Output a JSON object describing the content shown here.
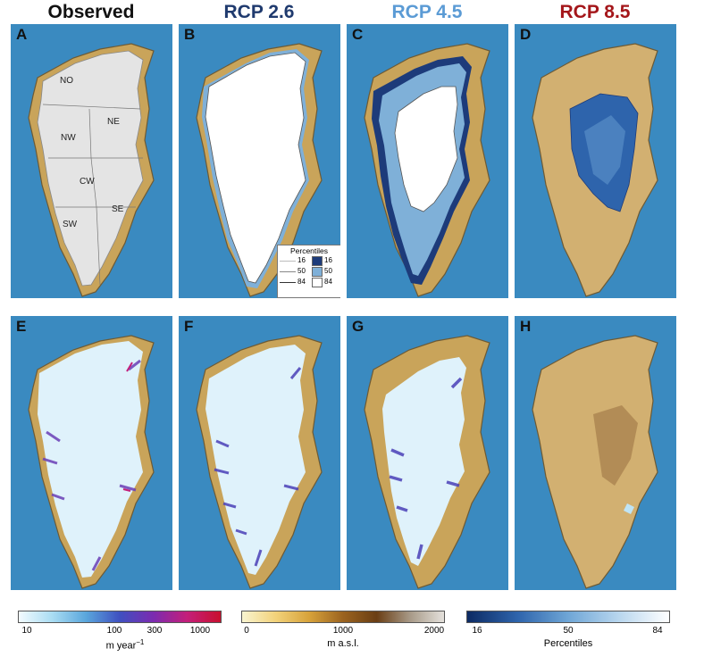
{
  "column_titles": [
    {
      "text": "Observed",
      "color": "#111111"
    },
    {
      "text": "RCP 2.6",
      "color": "#1f3a6e"
    },
    {
      "text": "RCP 4.5",
      "color": "#5b9bd5"
    },
    {
      "text": "RCP 8.5",
      "color": "#a4161a"
    }
  ],
  "panel_letters": [
    "A",
    "B",
    "C",
    "D",
    "E",
    "F",
    "G",
    "H"
  ],
  "regions": [
    "NO",
    "NE",
    "NW",
    "CW",
    "SW",
    "SE"
  ],
  "legend": {
    "title": "Percentiles",
    "rows": [
      {
        "left": "16",
        "right": "16",
        "swatch": "#1d3b7a"
      },
      {
        "left": "50",
        "right": "50",
        "swatch": "#7fb0d8"
      },
      {
        "left": "84",
        "right": "84",
        "swatch": "#ffffff"
      }
    ]
  },
  "colorbars": [
    {
      "ticks": [
        "10",
        "100",
        "300",
        "1000"
      ],
      "unit": "m year",
      "unit_exp": "−1",
      "colors": [
        "#f3fbff",
        "#a9dcf2",
        "#5aa6dc",
        "#3f50c0",
        "#7b2bb0",
        "#c41f7a",
        "#c8102e"
      ]
    },
    {
      "ticks": [
        "0",
        "1000",
        "2000"
      ],
      "unit": "m a.s.l.",
      "colors": [
        "#f9f4d0",
        "#f2d27a",
        "#d7a23a",
        "#9b6320",
        "#6a3e14",
        "#a89a88",
        "#e4e1dc"
      ]
    },
    {
      "ticks": [
        "16",
        "50",
        "84"
      ],
      "unit": "Percentiles",
      "colors": [
        "#0c2a63",
        "#2e64ac",
        "#6fa6d6",
        "#b8d6ee",
        "#ffffff"
      ]
    }
  ],
  "colors": {
    "ocean": "#3a8ac0",
    "land": "#c9a45a",
    "ice_white": "#ffffff",
    "ice_obs": "#e3e3e3"
  }
}
